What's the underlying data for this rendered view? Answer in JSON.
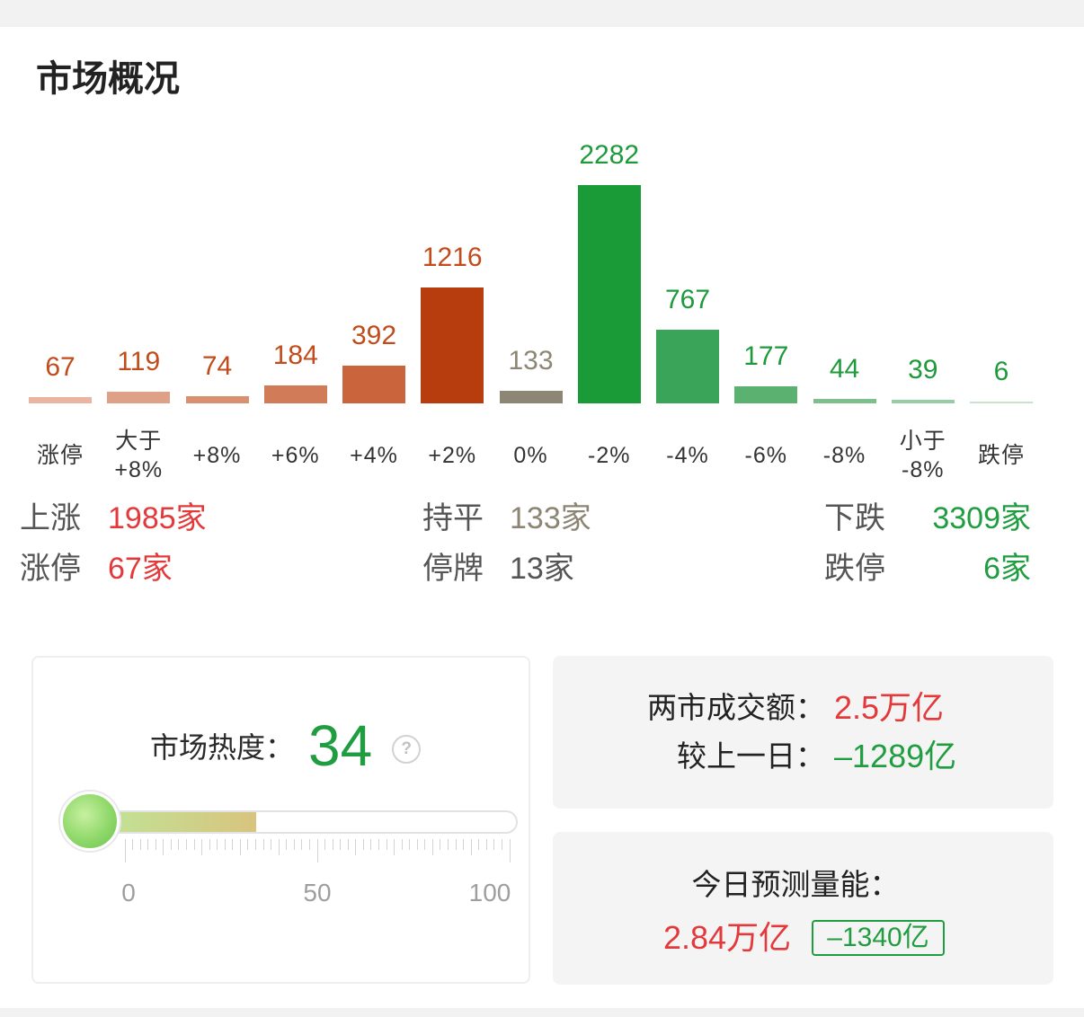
{
  "title": "市场概况",
  "chart_data": {
    "type": "bar",
    "categories": [
      "涨停",
      "大于\n+8%",
      "+8%",
      "+6%",
      "+4%",
      "+2%",
      "0%",
      "-2%",
      "-4%",
      "-6%",
      "-8%",
      "小于\n-8%",
      "跌停"
    ],
    "values": [
      67,
      119,
      74,
      184,
      392,
      1216,
      133,
      2282,
      767,
      177,
      44,
      39,
      6
    ],
    "bar_colors": [
      "#e9b4a2",
      "#dfa088",
      "#d9906f",
      "#d27b58",
      "#c9643c",
      "#b83d0e",
      "#8e8674",
      "#1b9a38",
      "#3aa558",
      "#5bb270",
      "#7ec08c",
      "#98cca3",
      "#c6e2cb"
    ],
    "value_label_colors": [
      "#c14b1b",
      "#c14b1b",
      "#c14b1b",
      "#c14b1b",
      "#c14b1b",
      "#c14b1b",
      "#8e8674",
      "#1e9a3c",
      "#1e9a3c",
      "#1e9a3c",
      "#1e9a3c",
      "#1e9a3c",
      "#1e9a3c"
    ],
    "grid": false
  },
  "summary": {
    "rise": {
      "label": "上涨",
      "value": "1985家"
    },
    "flat": {
      "label": "持平",
      "value": "133家"
    },
    "fall": {
      "label": "下跌",
      "value": "3309家"
    },
    "limit_up": {
      "label": "涨停",
      "value": "67家"
    },
    "suspended": {
      "label": "停牌",
      "value": "13家"
    },
    "limit_down": {
      "label": "跌停",
      "value": "6家"
    }
  },
  "heat": {
    "label": "市场热度：",
    "value": 34,
    "scale_min": 0,
    "scale_max": 100,
    "scale_labels": [
      "0",
      "50",
      "100"
    ],
    "help_icon": "question-circle-icon",
    "gauge_colors": {
      "fill_start": "#bfe598",
      "fill_end": "#d8c47e",
      "bulb_light": "#c8f0a0",
      "bulb_dark": "#6cc44f"
    }
  },
  "turnover": {
    "label": "两市成交额：",
    "value": "2.5万亿",
    "change_label": "较上一日：",
    "change_value": "–1289亿"
  },
  "forecast": {
    "label": "今日预测量能：",
    "value": "2.84万亿",
    "change": "–1340亿"
  },
  "colors": {
    "up": "#e3393b",
    "down": "#1f9d40",
    "flat": "#8d8573",
    "text": "#222222",
    "label": "#555555",
    "muted": "#9e9e9e"
  }
}
